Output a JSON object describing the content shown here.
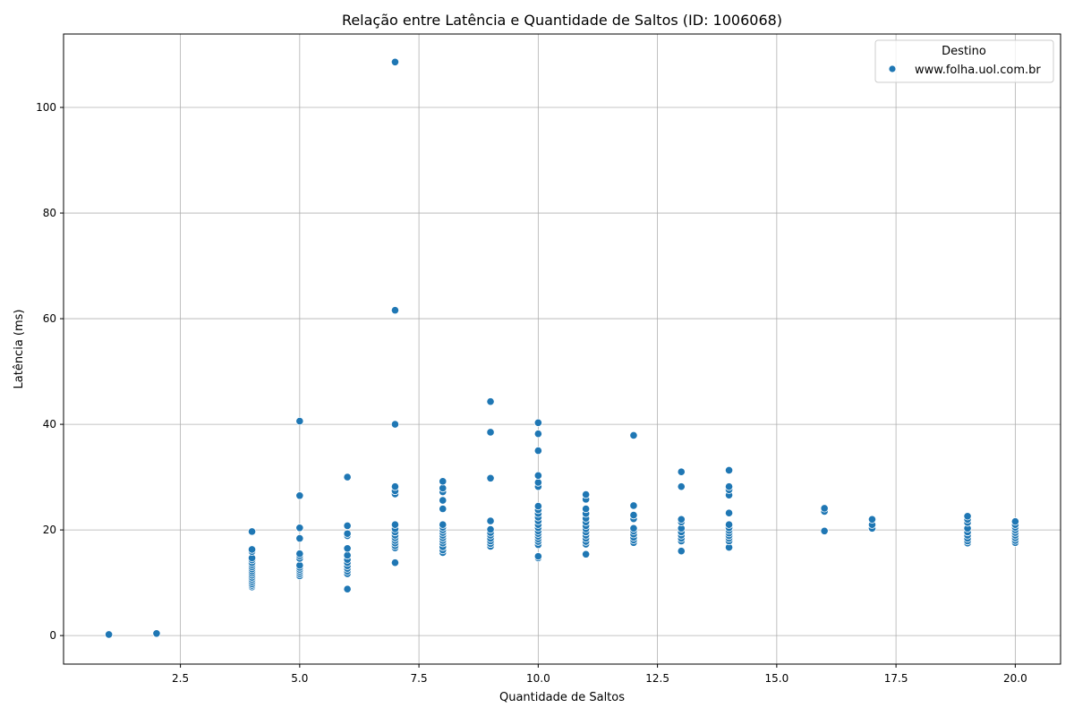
{
  "chart_data": {
    "type": "scatter",
    "title": "Relação entre Latência e Quantidade de Saltos (ID: 1006068)",
    "xlabel": "Quantidade de Saltos",
    "ylabel": "Latência (ms)",
    "xlim": [
      0.05,
      20.95
    ],
    "ylim": [
      -5.4,
      113.9
    ],
    "xticks": [
      2.5,
      5.0,
      7.5,
      10.0,
      12.5,
      15.0,
      17.5,
      20.0
    ],
    "xtick_labels": [
      "2.5",
      "5.0",
      "7.5",
      "10.0",
      "12.5",
      "15.0",
      "17.5",
      "20.0"
    ],
    "yticks": [
      0,
      20,
      40,
      60,
      80,
      100
    ],
    "ytick_labels": [
      "0",
      "20",
      "40",
      "60",
      "80",
      "100"
    ],
    "grid": true,
    "legend": {
      "title": "Destino",
      "position": "top-right"
    },
    "series": [
      {
        "name": "www.folha.uol.com.br",
        "color": "#1f77b4",
        "points": [
          [
            1,
            0.2
          ],
          [
            2,
            0.4
          ],
          [
            4,
            9.2
          ],
          [
            4,
            9.5
          ],
          [
            4,
            9.8
          ],
          [
            4,
            10.2
          ],
          [
            4,
            10.6
          ],
          [
            4,
            11.0
          ],
          [
            4,
            11.4
          ],
          [
            4,
            11.8
          ],
          [
            4,
            12.2
          ],
          [
            4,
            12.6
          ],
          [
            4,
            13.0
          ],
          [
            4,
            13.4
          ],
          [
            4,
            13.8
          ],
          [
            4,
            14.3
          ],
          [
            4,
            14.7
          ],
          [
            4,
            15.9
          ],
          [
            4,
            16.3
          ],
          [
            4,
            19.7
          ],
          [
            5,
            11.3
          ],
          [
            5,
            11.7
          ],
          [
            5,
            12.1
          ],
          [
            5,
            12.5
          ],
          [
            5,
            12.9
          ],
          [
            5,
            13.3
          ],
          [
            5,
            14.6
          ],
          [
            5,
            15.1
          ],
          [
            5,
            15.5
          ],
          [
            5,
            18.4
          ],
          [
            5,
            20.4
          ],
          [
            5,
            26.5
          ],
          [
            5,
            40.6
          ],
          [
            6,
            8.8
          ],
          [
            6,
            11.7
          ],
          [
            6,
            12.2
          ],
          [
            6,
            12.7
          ],
          [
            6,
            13.2
          ],
          [
            6,
            13.8
          ],
          [
            6,
            14.4
          ],
          [
            6,
            15.2
          ],
          [
            6,
            16.5
          ],
          [
            6,
            18.9
          ],
          [
            6,
            19.3
          ],
          [
            6,
            20.8
          ],
          [
            6,
            30.0
          ],
          [
            7,
            13.8
          ],
          [
            7,
            16.6
          ],
          [
            7,
            17.0
          ],
          [
            7,
            17.5
          ],
          [
            7,
            18.0
          ],
          [
            7,
            18.5
          ],
          [
            7,
            19.0
          ],
          [
            7,
            19.6
          ],
          [
            7,
            20.2
          ],
          [
            7,
            21.0
          ],
          [
            7,
            26.8
          ],
          [
            7,
            27.4
          ],
          [
            7,
            28.2
          ],
          [
            7,
            40.0
          ],
          [
            7,
            61.6
          ],
          [
            7,
            108.6
          ],
          [
            8,
            15.7
          ],
          [
            8,
            16.2
          ],
          [
            8,
            16.8
          ],
          [
            8,
            17.5
          ],
          [
            8,
            18.0
          ],
          [
            8,
            18.5
          ],
          [
            8,
            19.0
          ],
          [
            8,
            19.5
          ],
          [
            8,
            20.0
          ],
          [
            8,
            20.5
          ],
          [
            8,
            21.0
          ],
          [
            8,
            24.0
          ],
          [
            8,
            25.6
          ],
          [
            8,
            27.2
          ],
          [
            8,
            27.9
          ],
          [
            8,
            29.2
          ],
          [
            9,
            16.9
          ],
          [
            9,
            17.4
          ],
          [
            9,
            17.9
          ],
          [
            9,
            18.4
          ],
          [
            9,
            19.0
          ],
          [
            9,
            19.5
          ],
          [
            9,
            20.1
          ],
          [
            9,
            21.7
          ],
          [
            9,
            29.8
          ],
          [
            9,
            38.5
          ],
          [
            9,
            44.3
          ],
          [
            10,
            14.7
          ],
          [
            10,
            15.0
          ],
          [
            10,
            17.2
          ],
          [
            10,
            17.8
          ],
          [
            10,
            18.3
          ],
          [
            10,
            18.8
          ],
          [
            10,
            19.3
          ],
          [
            10,
            19.8
          ],
          [
            10,
            20.4
          ],
          [
            10,
            21.0
          ],
          [
            10,
            21.7
          ],
          [
            10,
            22.4
          ],
          [
            10,
            23.1
          ],
          [
            10,
            23.8
          ],
          [
            10,
            24.5
          ],
          [
            10,
            28.2
          ],
          [
            10,
            29.0
          ],
          [
            10,
            30.3
          ],
          [
            10,
            35.0
          ],
          [
            10,
            38.2
          ],
          [
            10,
            40.3
          ],
          [
            11,
            15.4
          ],
          [
            11,
            17.3
          ],
          [
            11,
            17.8
          ],
          [
            11,
            18.4
          ],
          [
            11,
            19.0
          ],
          [
            11,
            19.6
          ],
          [
            11,
            20.2
          ],
          [
            11,
            20.8
          ],
          [
            11,
            21.5
          ],
          [
            11,
            22.2
          ],
          [
            11,
            23.1
          ],
          [
            11,
            24.0
          ],
          [
            11,
            25.8
          ],
          [
            11,
            26.7
          ],
          [
            12,
            17.6
          ],
          [
            12,
            18.1
          ],
          [
            12,
            18.6
          ],
          [
            12,
            19.2
          ],
          [
            12,
            19.8
          ],
          [
            12,
            20.3
          ],
          [
            12,
            22.1
          ],
          [
            12,
            22.8
          ],
          [
            12,
            24.6
          ],
          [
            12,
            37.9
          ],
          [
            13,
            16.0
          ],
          [
            13,
            17.9
          ],
          [
            13,
            18.4
          ],
          [
            13,
            19.0
          ],
          [
            13,
            19.6
          ],
          [
            13,
            20.3
          ],
          [
            13,
            21.5
          ],
          [
            13,
            22.0
          ],
          [
            13,
            28.2
          ],
          [
            13,
            31.0
          ],
          [
            14,
            16.7
          ],
          [
            14,
            17.9
          ],
          [
            14,
            18.4
          ],
          [
            14,
            18.9
          ],
          [
            14,
            19.4
          ],
          [
            14,
            19.9
          ],
          [
            14,
            20.4
          ],
          [
            14,
            21.0
          ],
          [
            14,
            23.2
          ],
          [
            14,
            26.6
          ],
          [
            14,
            27.6
          ],
          [
            14,
            28.2
          ],
          [
            14,
            31.3
          ],
          [
            16,
            19.8
          ],
          [
            16,
            23.5
          ],
          [
            16,
            24.1
          ],
          [
            17,
            20.3
          ],
          [
            17,
            21.0
          ],
          [
            17,
            22.0
          ],
          [
            19,
            17.5
          ],
          [
            19,
            17.9
          ],
          [
            19,
            18.4
          ],
          [
            19,
            19.0
          ],
          [
            19,
            19.6
          ],
          [
            19,
            20.3
          ],
          [
            19,
            21.4
          ],
          [
            19,
            22.0
          ],
          [
            19,
            22.6
          ],
          [
            20,
            17.6
          ],
          [
            20,
            18.0
          ],
          [
            20,
            18.5
          ],
          [
            20,
            19.0
          ],
          [
            20,
            19.5
          ],
          [
            20,
            20.0
          ],
          [
            20,
            20.5
          ],
          [
            20,
            21.0
          ],
          [
            20,
            21.6
          ]
        ]
      }
    ]
  }
}
